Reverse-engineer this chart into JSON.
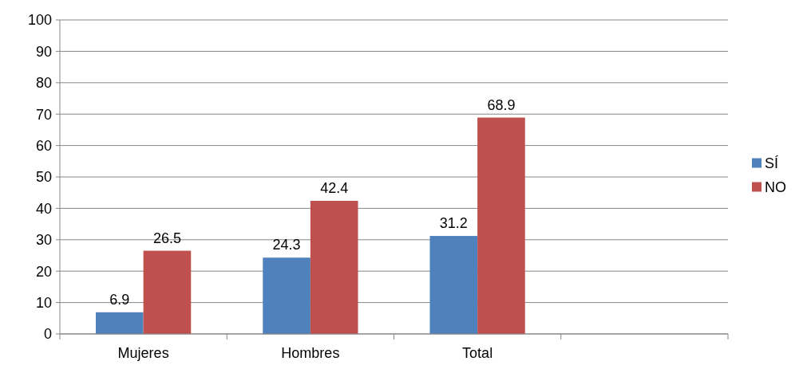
{
  "chart_data": {
    "type": "bar",
    "categories": [
      "Mujeres",
      "Hombres",
      "Total",
      null
    ],
    "series": [
      {
        "name": "SÍ",
        "color": "#4f81bd",
        "values": [
          6.9,
          24.3,
          31.2,
          null
        ]
      },
      {
        "name": "NO",
        "color": "#c0504d",
        "values": [
          26.5,
          42.4,
          68.9,
          null
        ]
      }
    ],
    "ylim": [
      0,
      100
    ],
    "yticks": [
      0,
      10,
      20,
      30,
      40,
      50,
      60,
      70,
      80,
      90,
      100
    ],
    "grid": "y",
    "legend": "right",
    "data_labels": true
  }
}
